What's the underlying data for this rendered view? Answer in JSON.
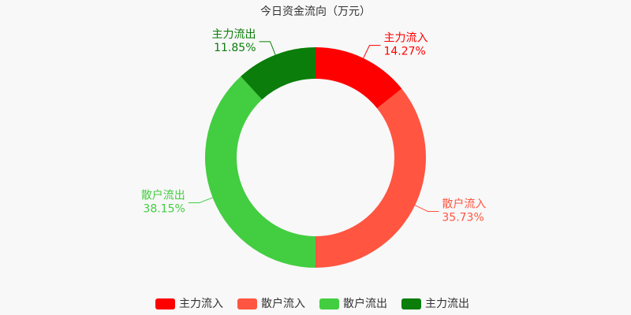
{
  "chart_data": {
    "type": "donut",
    "title": "今日资金流向（万元）",
    "categories": [
      "主力流入",
      "散户流入",
      "散户流出",
      "主力流出"
    ],
    "values": [
      14.27,
      35.73,
      38.15,
      11.85
    ],
    "value_labels": [
      "14.27%",
      "35.73%",
      "38.15%",
      "11.85%"
    ],
    "colors": [
      "#ff0000",
      "#ff5541",
      "#43cd41",
      "#0a7d0a"
    ],
    "legend": "bottom"
  }
}
